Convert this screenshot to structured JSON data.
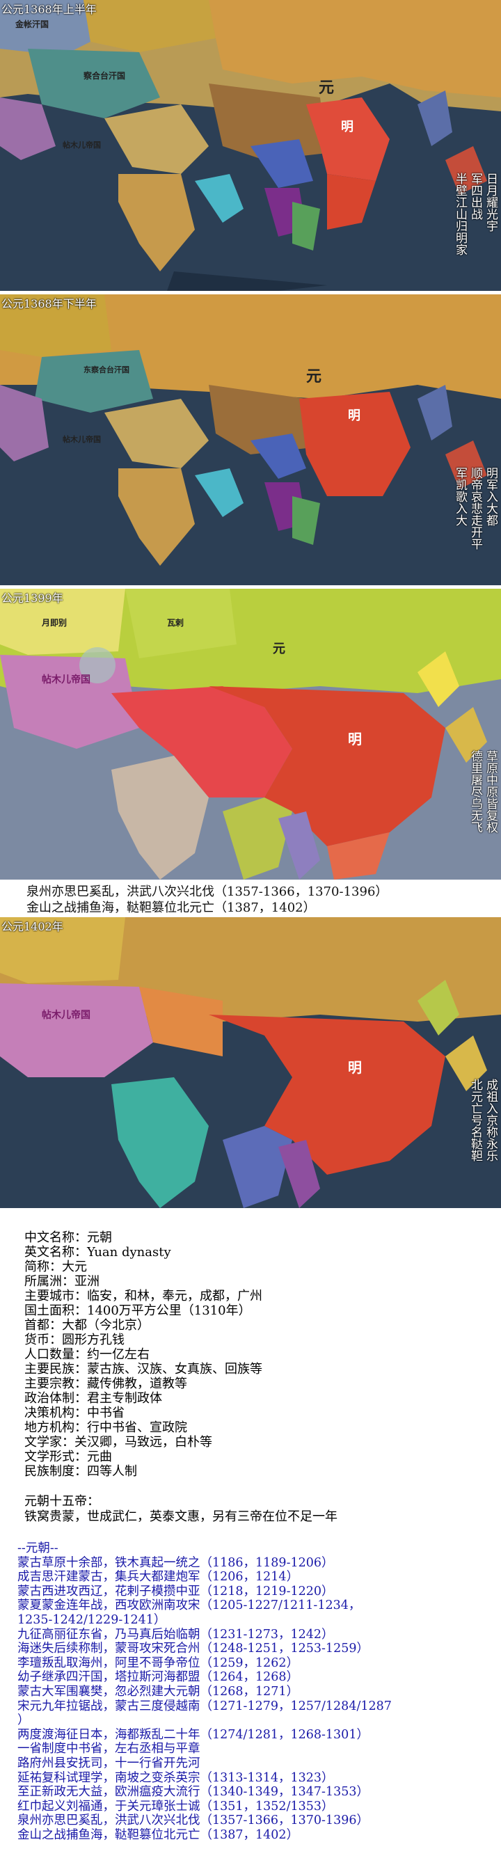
{
  "maps": [
    {
      "stamp": "公元1368年上半年",
      "labels": {
        "yuan": "元",
        "ming": "明",
        "jinzhang": "金帐汗国",
        "chahetai": "察合台汗国",
        "tiemuer": "帖木儿帝国"
      },
      "columns": [
        "日月耀光宇",
        "军四出战",
        "半壁江山归明家"
      ]
    },
    {
      "stamp": "公元1368年下半年",
      "labels": {
        "yuan": "元",
        "ming": "明",
        "chahetai": "东察合台汗国",
        "tiemuer": "帖木儿帝国"
      },
      "columns": [
        "明军入大都",
        "顺帝哀悲走开平",
        "军凯歌入大"
      ]
    },
    {
      "stamp": "公元1399年",
      "labels": {
        "yuan": "元",
        "ming": "明",
        "yueduo": "月即别",
        "waci": "瓦剌",
        "tiemuer": "帖木儿帝国"
      },
      "columns": [
        "草原中原皆复权",
        "德里屠尽乌无飞"
      ],
      "caption": [
        "泉州亦思巴奚乱，洪武八次兴北伐（1357-1366，1370-1396）",
        "金山之战捕鱼海，鞑靼篡位北元亡（1387，1402）"
      ]
    },
    {
      "stamp": "公元1402年",
      "labels": {
        "ming": "明",
        "tiemuer": "帖木儿帝国"
      },
      "columns": [
        "成祖入京称永乐",
        "北元亡号名鞑靼"
      ]
    }
  ],
  "info": {
    "rows": [
      "中文名称：元朝",
      "英文名称：Yuan dynasty",
      "简称：大元",
      "所属洲：亚洲",
      "主要城市：临安，和林，奉元，成都，广州",
      "国土面积：1400万平方公里（1310年）",
      "首都：大都（今北京）",
      "货币：圆形方孔钱",
      "人口数量：约一亿左右",
      "主要民族：蒙古族、汉族、女真族、回族等",
      "主要宗教：藏传佛教，道教等",
      "政治体制：君主专制政体",
      "决策机构：中书省",
      "地方机构：行中书省、宣政院",
      "文学家：关汉卿，马致远，白朴等",
      "文学形式：元曲",
      "民族制度：四等人制"
    ]
  },
  "emperors": {
    "title": "元朝十五帝：",
    "text": "铁窝贵蒙，世成武仁，英泰文惠，另有三帝在位不足一年"
  },
  "chronicle": {
    "rows": [
      "--元朝--",
      "蒙古草原十余部，铁木真起一统之（1186，1189-1206）",
      "成吉思汗建蒙古，集兵大都建炮军（1206，1214）",
      "蒙古西进攻西辽，花剌子模攒中亚（1218，1219-1220）",
      "蒙夏蒙金连年战，西攻欧洲南攻宋（1205-1227/1211-1234，",
      "1235-1242/1229-1241）",
      "九征高丽征东省，乃马真后始临朝（1231-1273，1242）",
      "海迷失后续称制，蒙哥攻宋死合州（1248-1251，1253-1259）",
      "李璮叛乱取海州，阿里不哥争帝位（1259，1262）",
      "幼子继承四汗国，塔拉斯河海都盟（1264，1268）",
      "蒙古大军围襄樊，忽必烈建大元朝（1268，1271）",
      "宋元九年拉锯战，蒙古三度侵越南（1271-1279，1257/1284/1287",
      "）",
      "两度渡海征日本，海都叛乱二十年（1274/1281，1268-1301）",
      "一省制度中书省，左右丞相与平章",
      "路府州县安抚司，十一行省开先河",
      "延祐复科试理学，南坡之变杀英宗（1313-1314，1323）",
      "至正新政无大益，欧洲瘟疫大流行（1340-1349，1347-1353）",
      "红巾起义刘福通，于关元璋张士诚（1351，1352/1353）",
      "泉州亦思巴奚乱，洪武八次兴北伐（1357-1366，1370-1396）",
      "金山之战捕鱼海，鞑靼篡位北元亡（1387，1402）"
    ]
  },
  "colors": {
    "ocean": "#2a3d52",
    "ming_red": "#d8452e",
    "yuan_orange": "#d98a3a",
    "steppe_gold": "#caa23c",
    "chron_blue": "#1a1aa8"
  }
}
